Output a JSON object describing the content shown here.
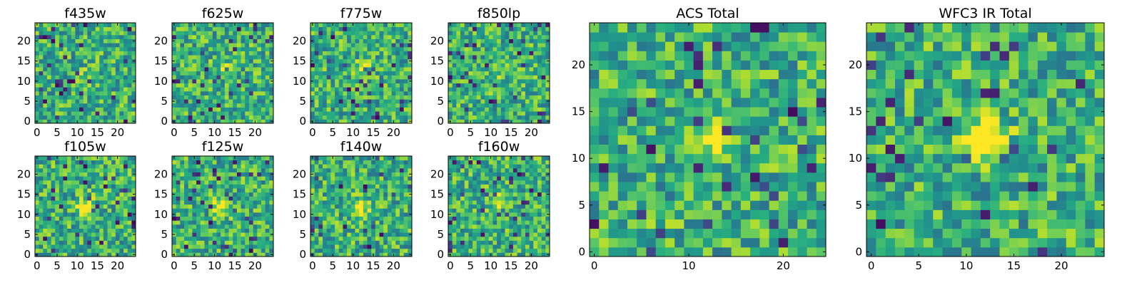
{
  "figure": {
    "type": "image-grid"
  },
  "chart_data": [
    {
      "type": "heatmap",
      "title": "f435w",
      "xticks": [
        0,
        5,
        10,
        15,
        20
      ],
      "yticks": [
        0,
        5,
        10,
        15,
        20
      ],
      "xlim": [
        -0.5,
        24.5
      ],
      "ylim": [
        -0.5,
        24.5
      ],
      "shape": [
        25,
        25
      ],
      "colormap": "viridis",
      "feature": {
        "x": 12,
        "y": 11,
        "strength": 0.1
      },
      "seed": 11
    },
    {
      "type": "heatmap",
      "title": "f625w",
      "xticks": [
        0,
        5,
        10,
        15,
        20
      ],
      "yticks": [
        0,
        5,
        10,
        15,
        20
      ],
      "xlim": [
        -0.5,
        24.5
      ],
      "ylim": [
        -0.5,
        24.5
      ],
      "shape": [
        25,
        25
      ],
      "colormap": "viridis",
      "feature": {
        "x": 12,
        "y": 13,
        "strength": 0.2
      },
      "seed": 23
    },
    {
      "type": "heatmap",
      "title": "f775w",
      "xticks": [
        0,
        5,
        10,
        15,
        20
      ],
      "yticks": [
        0,
        5,
        10,
        15,
        20
      ],
      "xlim": [
        -0.5,
        24.5
      ],
      "ylim": [
        -0.5,
        24.5
      ],
      "shape": [
        25,
        25
      ],
      "colormap": "viridis",
      "feature": {
        "x": 12,
        "y": 13,
        "strength": 0.3
      },
      "seed": 37
    },
    {
      "type": "heatmap",
      "title": "f850lp",
      "xticks": [
        0,
        5,
        10,
        15,
        20
      ],
      "yticks": [
        0,
        5,
        10,
        15,
        20
      ],
      "xlim": [
        -0.5,
        24.5
      ],
      "ylim": [
        -0.5,
        24.5
      ],
      "shape": [
        25,
        25
      ],
      "colormap": "viridis",
      "feature": {
        "x": 12,
        "y": 12,
        "strength": 0.15
      },
      "seed": 41
    },
    {
      "type": "heatmap",
      "title": "f105w",
      "xticks": [
        0,
        5,
        10,
        15,
        20
      ],
      "yticks": [
        0,
        5,
        10,
        15,
        20
      ],
      "xlim": [
        -0.5,
        24.5
      ],
      "ylim": [
        -0.5,
        24.5
      ],
      "shape": [
        25,
        25
      ],
      "colormap": "viridis",
      "feature": {
        "x": 12,
        "y": 12,
        "strength": 0.45
      },
      "seed": 53
    },
    {
      "type": "heatmap",
      "title": "f125w",
      "xticks": [
        0,
        5,
        10,
        15,
        20
      ],
      "yticks": [
        0,
        5,
        10,
        15,
        20
      ],
      "xlim": [
        -0.5,
        24.5
      ],
      "ylim": [
        -0.5,
        24.5
      ],
      "shape": [
        25,
        25
      ],
      "colormap": "viridis",
      "feature": {
        "x": 12,
        "y": 12,
        "strength": 0.45
      },
      "seed": 67
    },
    {
      "type": "heatmap",
      "title": "f140w",
      "xticks": [
        0,
        5,
        10,
        15,
        20
      ],
      "yticks": [
        0,
        5,
        10,
        15,
        20
      ],
      "xlim": [
        -0.5,
        24.5
      ],
      "ylim": [
        -0.5,
        24.5
      ],
      "shape": [
        25,
        25
      ],
      "colormap": "viridis",
      "feature": {
        "x": 12,
        "y": 12,
        "strength": 0.35
      },
      "seed": 79
    },
    {
      "type": "heatmap",
      "title": "f160w",
      "xticks": [
        0,
        5,
        10,
        15,
        20
      ],
      "yticks": [
        0,
        5,
        10,
        15,
        20
      ],
      "xlim": [
        -0.5,
        24.5
      ],
      "ylim": [
        -0.5,
        24.5
      ],
      "shape": [
        25,
        25
      ],
      "colormap": "viridis",
      "feature": {
        "x": 12,
        "y": 13,
        "strength": 0.45
      },
      "seed": 83
    },
    {
      "type": "heatmap",
      "title": "ACS Total",
      "xticks": [
        0,
        10,
        20
      ],
      "yticks": [
        0,
        5,
        10,
        15,
        20
      ],
      "xlim": [
        -0.5,
        24.5
      ],
      "ylim": [
        -0.5,
        24.5
      ],
      "shape": [
        25,
        25
      ],
      "colormap": "viridis",
      "feature": {
        "x": 12,
        "y": 12,
        "strength": 0.4
      },
      "seed": 97
    },
    {
      "type": "heatmap",
      "title": "WFC3 IR Total",
      "xticks": [
        0,
        5,
        10,
        15,
        20
      ],
      "yticks": [
        0,
        5,
        10,
        15,
        20
      ],
      "xlim": [
        -0.5,
        24.5
      ],
      "ylim": [
        -0.5,
        24.5
      ],
      "shape": [
        25,
        25
      ],
      "colormap": "viridis",
      "feature": {
        "x": 12,
        "y": 12,
        "strength": 0.7
      },
      "seed": 101
    }
  ]
}
